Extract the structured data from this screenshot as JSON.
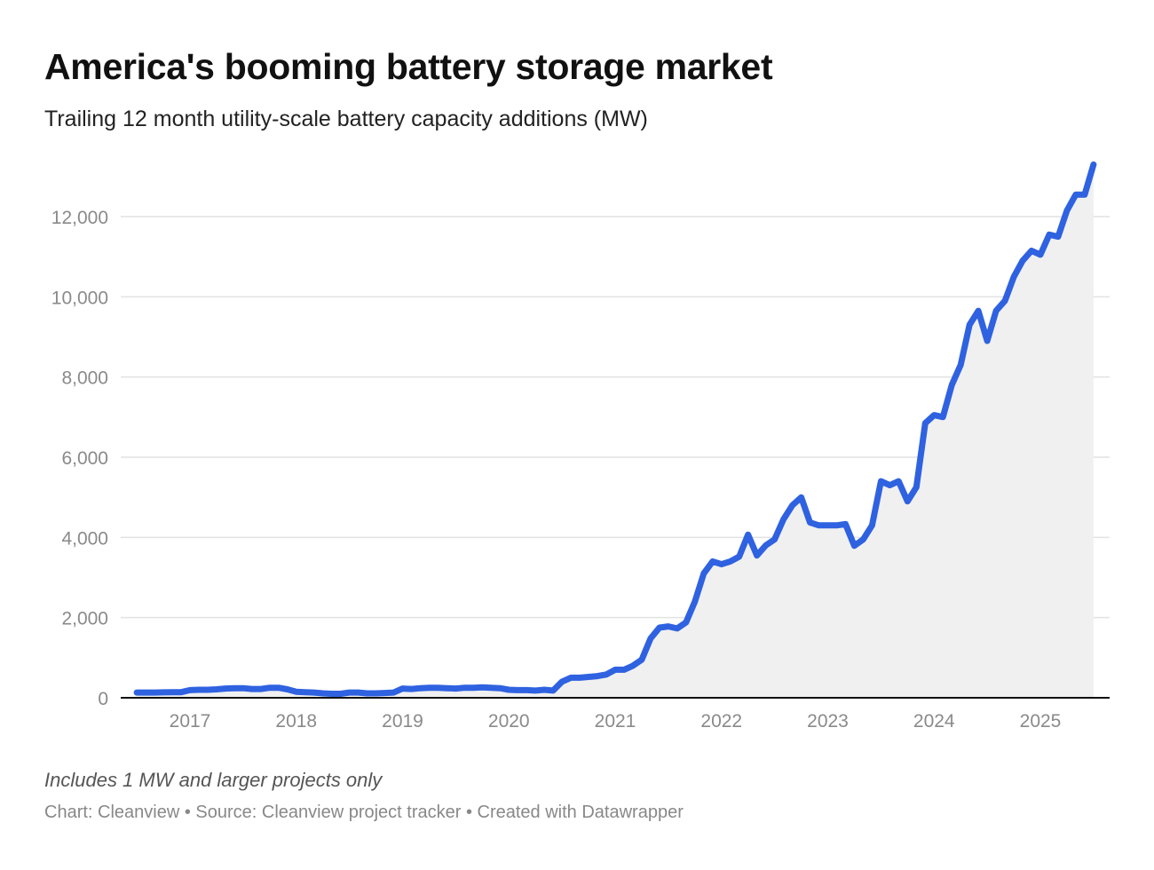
{
  "chart_data": {
    "type": "area",
    "title": "America's booming battery storage market",
    "subtitle": "Trailing 12 month utility-scale battery capacity additions (MW)",
    "note": "Includes 1 MW and larger projects only",
    "source": "Chart: Cleanview • Source: Cleanview project tracker • Created with Datawrapper",
    "ylim": [
      0,
      13300
    ],
    "y_ticks": [
      0,
      2000,
      4000,
      6000,
      8000,
      10000,
      12000
    ],
    "y_tick_labels": [
      "0",
      "2,000",
      "4,000",
      "6,000",
      "8,000",
      "10,000",
      "12,000"
    ],
    "x_ticks": [
      "2017",
      "2018",
      "2019",
      "2020",
      "2021",
      "2022",
      "2023",
      "2024",
      "2025"
    ],
    "grid": true,
    "colors": {
      "line": "#2f62e0",
      "area": "#f0f0f0",
      "grid": "#e2e2e2",
      "axis": "#111111"
    },
    "x": [
      "2016-07",
      "2016-08",
      "2016-09",
      "2016-10",
      "2016-11",
      "2016-12",
      "2017-01",
      "2017-02",
      "2017-03",
      "2017-04",
      "2017-05",
      "2017-06",
      "2017-07",
      "2017-08",
      "2017-09",
      "2017-10",
      "2017-11",
      "2017-12",
      "2018-01",
      "2018-02",
      "2018-03",
      "2018-04",
      "2018-05",
      "2018-06",
      "2018-07",
      "2018-08",
      "2018-09",
      "2018-10",
      "2018-11",
      "2018-12",
      "2019-01",
      "2019-02",
      "2019-03",
      "2019-04",
      "2019-05",
      "2019-06",
      "2019-07",
      "2019-08",
      "2019-09",
      "2019-10",
      "2019-11",
      "2019-12",
      "2020-01",
      "2020-02",
      "2020-03",
      "2020-04",
      "2020-05",
      "2020-06",
      "2020-07",
      "2020-08",
      "2020-09",
      "2020-10",
      "2020-11",
      "2020-12",
      "2021-01",
      "2021-02",
      "2021-03",
      "2021-04",
      "2021-05",
      "2021-06",
      "2021-07",
      "2021-08",
      "2021-09",
      "2021-10",
      "2021-11",
      "2021-12",
      "2022-01",
      "2022-02",
      "2022-03",
      "2022-04",
      "2022-05",
      "2022-06",
      "2022-07",
      "2022-08",
      "2022-09",
      "2022-10",
      "2022-11",
      "2022-12",
      "2023-01",
      "2023-02",
      "2023-03",
      "2023-04",
      "2023-05",
      "2023-06",
      "2023-07",
      "2023-08",
      "2023-09",
      "2023-10",
      "2023-11",
      "2023-12",
      "2024-01",
      "2024-02",
      "2024-03",
      "2024-04",
      "2024-05",
      "2024-06",
      "2024-07",
      "2024-08",
      "2024-09",
      "2024-10",
      "2024-11",
      "2024-12",
      "2025-01",
      "2025-02",
      "2025-03",
      "2025-04",
      "2025-05",
      "2025-06",
      "2025-07"
    ],
    "values": [
      130,
      130,
      130,
      135,
      140,
      140,
      190,
      200,
      200,
      210,
      230,
      240,
      240,
      220,
      220,
      250,
      250,
      210,
      150,
      140,
      130,
      110,
      100,
      100,
      130,
      130,
      110,
      110,
      120,
      130,
      230,
      220,
      240,
      250,
      250,
      240,
      230,
      250,
      250,
      260,
      250,
      240,
      200,
      190,
      190,
      180,
      200,
      180,
      400,
      500,
      500,
      520,
      540,
      580,
      700,
      700,
      800,
      950,
      1480,
      1750,
      1780,
      1730,
      1880,
      2400,
      3100,
      3400,
      3330,
      3400,
      3520,
      4070,
      3550,
      3800,
      3950,
      4450,
      4800,
      5000,
      4370,
      4300,
      4300,
      4300,
      4330,
      3790,
      3950,
      4300,
      5400,
      5300,
      5400,
      4900,
      5250,
      6850,
      7050,
      7000,
      7800,
      8300,
      9300,
      9650,
      8900,
      9650,
      9900,
      10500,
      10900,
      11150,
      11050,
      11550,
      11500,
      12150,
      12550,
      12550,
      13300
    ]
  }
}
